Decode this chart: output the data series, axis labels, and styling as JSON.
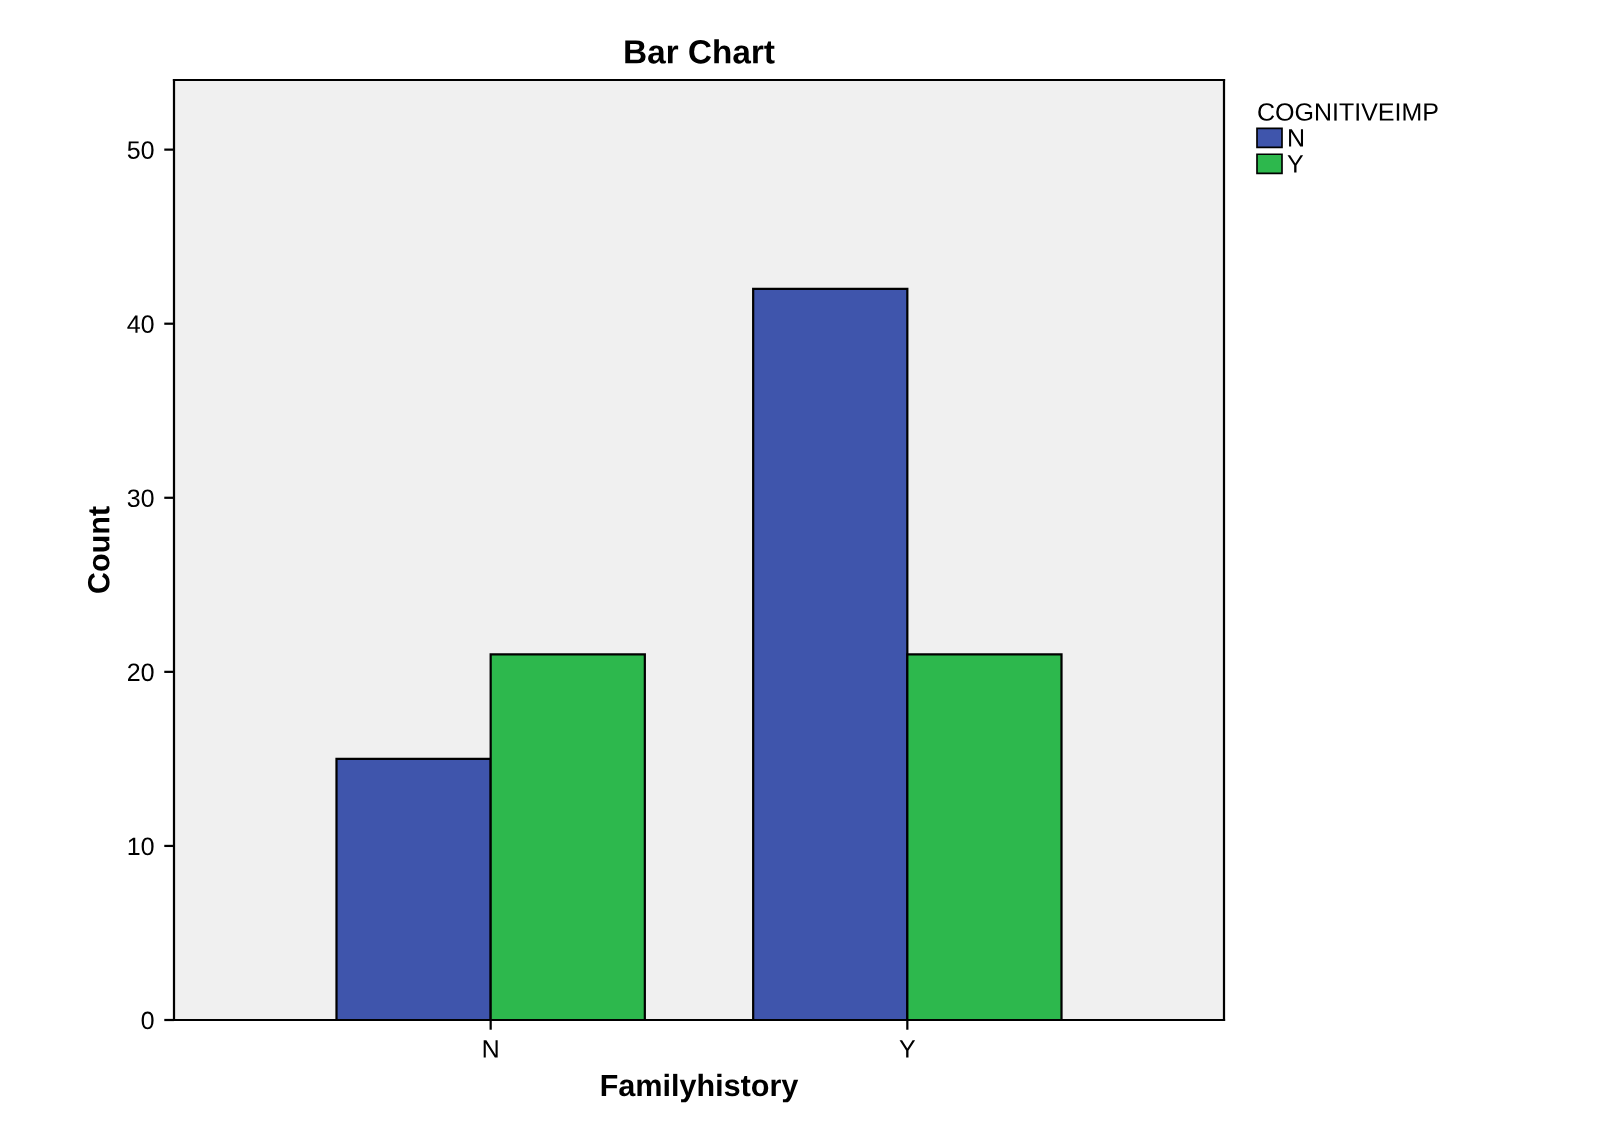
{
  "chart_data": {
    "type": "bar",
    "title": "Bar Chart",
    "xlabel": "Familyhistory",
    "ylabel": "Count",
    "legend_title": "COGNITIVEIMP",
    "categories": [
      "N",
      "Y"
    ],
    "series": [
      {
        "name": "N",
        "color": "#3f55ac",
        "values": [
          15,
          42
        ]
      },
      {
        "name": "Y",
        "color": "#2db84d",
        "values": [
          21,
          21
        ]
      }
    ],
    "ylim": [
      0,
      54
    ],
    "yticks": [
      0,
      10,
      20,
      30,
      40,
      50
    ],
    "grid": false,
    "legend": "top right"
  }
}
